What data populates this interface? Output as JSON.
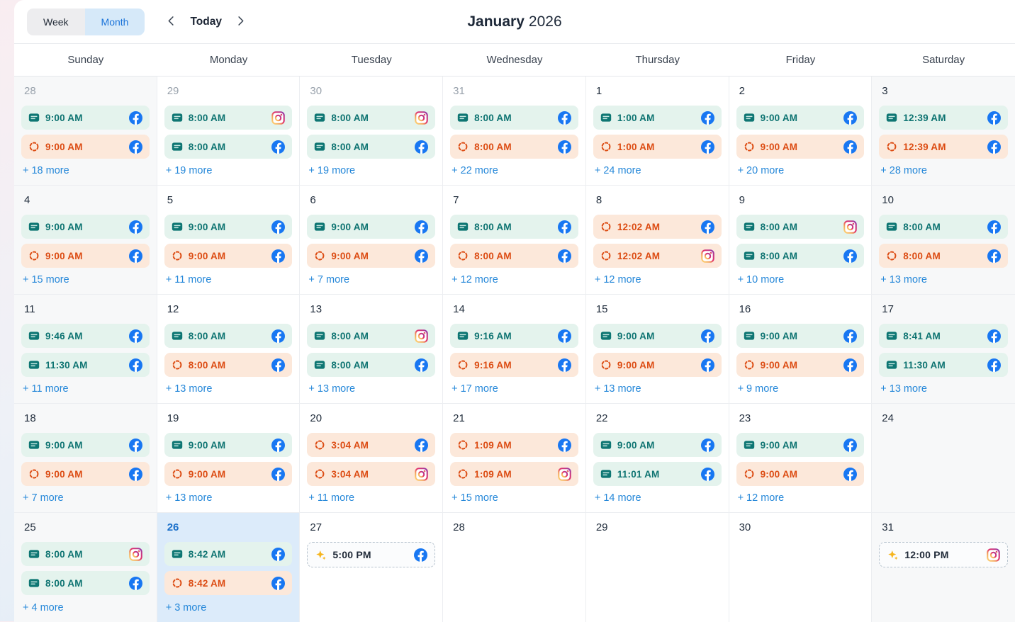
{
  "toolbar": {
    "week_label": "Week",
    "month_label": "Month",
    "active_view": "Month",
    "today_label": "Today",
    "title_month": "January",
    "title_year": "2026"
  },
  "weekdays": [
    "Sunday",
    "Monday",
    "Tuesday",
    "Wednesday",
    "Thursday",
    "Friday",
    "Saturday"
  ],
  "icons": {
    "post": "post-icon",
    "pending": "pending-circle-icon",
    "suggested": "sparkle-icon",
    "facebook": "facebook-icon",
    "instagram": "instagram-icon"
  },
  "colors": {
    "facebook_blue": "#1877F2",
    "instagram_gradient": [
      "#FFD776",
      "#F3A55B",
      "#E1306C",
      "#C13584",
      "#833AB4"
    ],
    "post_chip_bg": "#e4f3ed",
    "post_chip_text": "#0d7371",
    "pending_chip_bg": "#fce8da",
    "pending_chip_text": "#dc4b12",
    "suggested_chip_border": "#b7c3ce",
    "today_cell_bg": "#dcebfa",
    "today_number": "#1a6fc9",
    "more_link": "#2688d9",
    "weekend_cell_bg": "#f7f8f9",
    "month_toggle_bg": "#d6e9f9",
    "month_toggle_text": "#1a73d9",
    "week_toggle_bg": "#ededef"
  },
  "weeks": [
    [
      {
        "day": "28",
        "outside": true,
        "events": [
          {
            "kind": "post",
            "time": "9:00 AM",
            "network": "facebook"
          },
          {
            "kind": "pending",
            "time": "9:00 AM",
            "network": "facebook"
          }
        ],
        "more": "+ 18 more"
      },
      {
        "day": "29",
        "outside": true,
        "events": [
          {
            "kind": "post",
            "time": "8:00 AM",
            "network": "instagram"
          },
          {
            "kind": "post",
            "time": "8:00 AM",
            "network": "facebook"
          }
        ],
        "more": "+ 19 more"
      },
      {
        "day": "30",
        "outside": true,
        "events": [
          {
            "kind": "post",
            "time": "8:00 AM",
            "network": "instagram"
          },
          {
            "kind": "post",
            "time": "8:00 AM",
            "network": "facebook"
          }
        ],
        "more": "+ 19 more"
      },
      {
        "day": "31",
        "outside": true,
        "events": [
          {
            "kind": "post",
            "time": "8:00 AM",
            "network": "facebook"
          },
          {
            "kind": "pending",
            "time": "8:00 AM",
            "network": "facebook"
          }
        ],
        "more": "+ 22 more"
      },
      {
        "day": "1",
        "events": [
          {
            "kind": "post",
            "time": "1:00 AM",
            "network": "facebook"
          },
          {
            "kind": "pending",
            "time": "1:00 AM",
            "network": "facebook"
          }
        ],
        "more": "+ 24 more"
      },
      {
        "day": "2",
        "events": [
          {
            "kind": "post",
            "time": "9:00 AM",
            "network": "facebook"
          },
          {
            "kind": "pending",
            "time": "9:00 AM",
            "network": "facebook"
          }
        ],
        "more": "+ 20 more"
      },
      {
        "day": "3",
        "events": [
          {
            "kind": "post",
            "time": "12:39 AM",
            "network": "facebook"
          },
          {
            "kind": "pending",
            "time": "12:39 AM",
            "network": "facebook"
          }
        ],
        "more": "+ 28 more"
      }
    ],
    [
      {
        "day": "4",
        "events": [
          {
            "kind": "post",
            "time": "9:00 AM",
            "network": "facebook"
          },
          {
            "kind": "pending",
            "time": "9:00 AM",
            "network": "facebook"
          }
        ],
        "more": "+ 15 more"
      },
      {
        "day": "5",
        "events": [
          {
            "kind": "post",
            "time": "9:00 AM",
            "network": "facebook"
          },
          {
            "kind": "pending",
            "time": "9:00 AM",
            "network": "facebook"
          }
        ],
        "more": "+ 11 more"
      },
      {
        "day": "6",
        "events": [
          {
            "kind": "post",
            "time": "9:00 AM",
            "network": "facebook"
          },
          {
            "kind": "pending",
            "time": "9:00 AM",
            "network": "facebook"
          }
        ],
        "more": "+ 7 more"
      },
      {
        "day": "7",
        "events": [
          {
            "kind": "post",
            "time": "8:00 AM",
            "network": "facebook"
          },
          {
            "kind": "pending",
            "time": "8:00 AM",
            "network": "facebook"
          }
        ],
        "more": "+ 12 more"
      },
      {
        "day": "8",
        "events": [
          {
            "kind": "pending",
            "time": "12:02 AM",
            "network": "facebook"
          },
          {
            "kind": "pending",
            "time": "12:02 AM",
            "network": "instagram"
          }
        ],
        "more": "+ 12 more"
      },
      {
        "day": "9",
        "events": [
          {
            "kind": "post",
            "time": "8:00 AM",
            "network": "instagram"
          },
          {
            "kind": "post",
            "time": "8:00 AM",
            "network": "facebook"
          }
        ],
        "more": "+ 10 more"
      },
      {
        "day": "10",
        "events": [
          {
            "kind": "post",
            "time": "8:00 AM",
            "network": "facebook"
          },
          {
            "kind": "pending",
            "time": "8:00 AM",
            "network": "facebook"
          }
        ],
        "more": "+ 13 more"
      }
    ],
    [
      {
        "day": "11",
        "events": [
          {
            "kind": "post",
            "time": "9:46 AM",
            "network": "facebook"
          },
          {
            "kind": "post",
            "time": "11:30 AM",
            "network": "facebook"
          }
        ],
        "more": "+ 11 more"
      },
      {
        "day": "12",
        "events": [
          {
            "kind": "post",
            "time": "8:00 AM",
            "network": "facebook"
          },
          {
            "kind": "pending",
            "time": "8:00 AM",
            "network": "facebook"
          }
        ],
        "more": "+ 13 more"
      },
      {
        "day": "13",
        "events": [
          {
            "kind": "post",
            "time": "8:00 AM",
            "network": "instagram"
          },
          {
            "kind": "post",
            "time": "8:00 AM",
            "network": "facebook"
          }
        ],
        "more": "+ 13 more"
      },
      {
        "day": "14",
        "events": [
          {
            "kind": "post",
            "time": "9:16 AM",
            "network": "facebook"
          },
          {
            "kind": "pending",
            "time": "9:16 AM",
            "network": "facebook"
          }
        ],
        "more": "+ 17 more"
      },
      {
        "day": "15",
        "events": [
          {
            "kind": "post",
            "time": "9:00 AM",
            "network": "facebook"
          },
          {
            "kind": "pending",
            "time": "9:00 AM",
            "network": "facebook"
          }
        ],
        "more": "+ 13 more"
      },
      {
        "day": "16",
        "events": [
          {
            "kind": "post",
            "time": "9:00 AM",
            "network": "facebook"
          },
          {
            "kind": "pending",
            "time": "9:00 AM",
            "network": "facebook"
          }
        ],
        "more": "+ 9 more"
      },
      {
        "day": "17",
        "events": [
          {
            "kind": "post",
            "time": "8:41 AM",
            "network": "facebook"
          },
          {
            "kind": "post",
            "time": "11:30 AM",
            "network": "facebook"
          }
        ],
        "more": "+ 13 more"
      }
    ],
    [
      {
        "day": "18",
        "events": [
          {
            "kind": "post",
            "time": "9:00 AM",
            "network": "facebook"
          },
          {
            "kind": "pending",
            "time": "9:00 AM",
            "network": "facebook"
          }
        ],
        "more": "+ 7 more"
      },
      {
        "day": "19",
        "events": [
          {
            "kind": "post",
            "time": "9:00 AM",
            "network": "facebook"
          },
          {
            "kind": "pending",
            "time": "9:00 AM",
            "network": "facebook"
          }
        ],
        "more": "+ 13 more"
      },
      {
        "day": "20",
        "events": [
          {
            "kind": "pending",
            "time": "3:04 AM",
            "network": "facebook"
          },
          {
            "kind": "pending",
            "time": "3:04 AM",
            "network": "instagram"
          }
        ],
        "more": "+ 11 more"
      },
      {
        "day": "21",
        "events": [
          {
            "kind": "pending",
            "time": "1:09 AM",
            "network": "facebook"
          },
          {
            "kind": "pending",
            "time": "1:09 AM",
            "network": "instagram"
          }
        ],
        "more": "+ 15 more"
      },
      {
        "day": "22",
        "events": [
          {
            "kind": "post",
            "time": "9:00 AM",
            "network": "facebook"
          },
          {
            "kind": "post",
            "time": "11:01 AM",
            "network": "facebook"
          }
        ],
        "more": "+ 14 more"
      },
      {
        "day": "23",
        "events": [
          {
            "kind": "post",
            "time": "9:00 AM",
            "network": "facebook"
          },
          {
            "kind": "pending",
            "time": "9:00 AM",
            "network": "facebook"
          }
        ],
        "more": "+ 12 more"
      },
      {
        "day": "24",
        "events": [],
        "more": null
      }
    ],
    [
      {
        "day": "25",
        "events": [
          {
            "kind": "post",
            "time": "8:00 AM",
            "network": "instagram"
          },
          {
            "kind": "post",
            "time": "8:00 AM",
            "network": "facebook"
          }
        ],
        "more": "+ 4 more"
      },
      {
        "day": "26",
        "today": true,
        "events": [
          {
            "kind": "post",
            "time": "8:42 AM",
            "network": "facebook"
          },
          {
            "kind": "pending",
            "time": "8:42 AM",
            "network": "facebook"
          }
        ],
        "more": "+ 3 more"
      },
      {
        "day": "27",
        "events": [
          {
            "kind": "suggested",
            "time": "5:00 PM",
            "network": "facebook"
          }
        ],
        "more": null
      },
      {
        "day": "28",
        "events": [],
        "more": null
      },
      {
        "day": "29",
        "events": [],
        "more": null
      },
      {
        "day": "30",
        "events": [],
        "more": null
      },
      {
        "day": "31",
        "events": [
          {
            "kind": "suggested",
            "time": "12:00 PM",
            "network": "instagram"
          }
        ],
        "more": null
      }
    ]
  ]
}
